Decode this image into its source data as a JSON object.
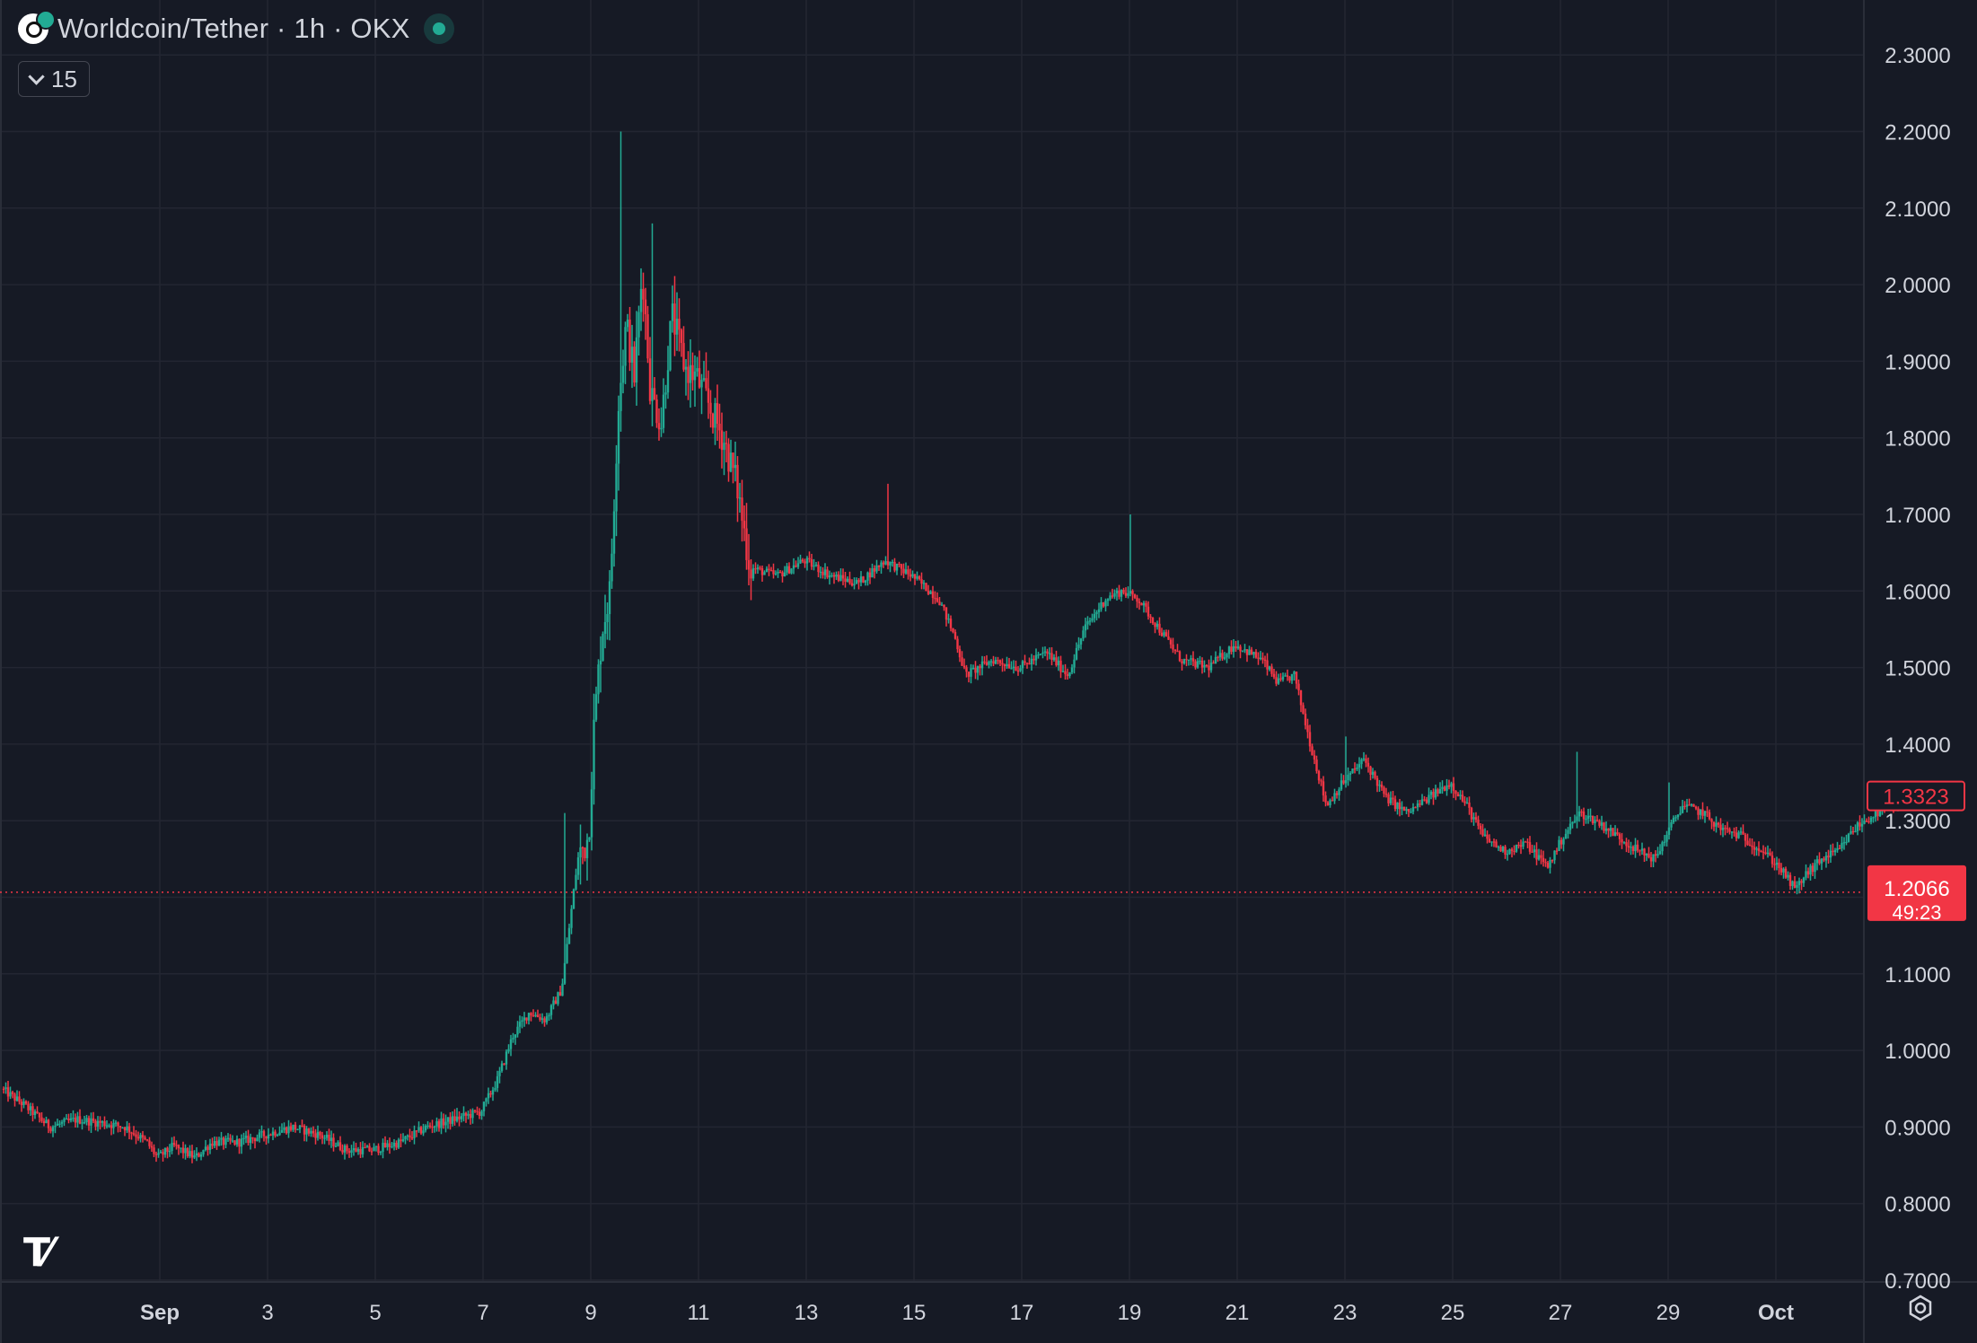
{
  "header": {
    "title": "Worldcoin/Tether · 1h · OKX",
    "indicator_count": "15"
  },
  "price_labels": {
    "last_price": "1.3323",
    "crosshair_price": "1.2066",
    "countdown": "49:23"
  },
  "colors": {
    "background": "#161a25",
    "grid": "#232632",
    "up": "#22ab94",
    "down": "#f23645",
    "text": "#d1d4dc"
  },
  "chart_data": {
    "type": "candlestick",
    "title": "",
    "xlabel": "",
    "ylabel": "",
    "ylim": [
      0.7,
      2.35
    ],
    "y_ticks": [
      "2.3000",
      "2.2000",
      "2.1000",
      "2.0000",
      "1.9000",
      "1.8000",
      "1.7000",
      "1.6000",
      "1.5000",
      "1.4000",
      "1.3000",
      "1.2000",
      "1.1000",
      "1.0000",
      "0.9000",
      "0.8000",
      "0.7000"
    ],
    "x_ticks": [
      "Sep",
      "3",
      "5",
      "7",
      "9",
      "11",
      "13",
      "15",
      "17",
      "19",
      "21",
      "23",
      "25",
      "27",
      "29",
      "Oct"
    ],
    "x_tick_days": [
      1,
      3,
      5,
      7,
      9,
      11,
      13,
      15,
      17,
      19,
      21,
      23,
      25,
      27,
      29,
      31
    ],
    "x_range_days": [
      -1.9,
      33.6
    ],
    "price_path": [
      [
        -1.9,
        0.95
      ],
      [
        -1.5,
        0.93
      ],
      [
        -1.0,
        0.9
      ],
      [
        -0.5,
        0.91
      ],
      [
        0.0,
        0.905
      ],
      [
        0.4,
        0.9
      ],
      [
        0.8,
        0.88
      ],
      [
        1.0,
        0.86
      ],
      [
        1.3,
        0.875
      ],
      [
        1.7,
        0.86
      ],
      [
        2.0,
        0.88
      ],
      [
        2.5,
        0.88
      ],
      [
        3.0,
        0.89
      ],
      [
        3.5,
        0.9
      ],
      [
        4.0,
        0.89
      ],
      [
        4.5,
        0.87
      ],
      [
        5.0,
        0.87
      ],
      [
        5.5,
        0.88
      ],
      [
        6.0,
        0.9
      ],
      [
        6.5,
        0.91
      ],
      [
        7.0,
        0.92
      ],
      [
        7.3,
        0.96
      ],
      [
        7.6,
        1.02
      ],
      [
        7.9,
        1.05
      ],
      [
        8.2,
        1.04
      ],
      [
        8.5,
        1.08
      ],
      [
        8.8,
        1.25
      ],
      [
        9.0,
        1.28
      ],
      [
        9.1,
        1.42
      ],
      [
        9.25,
        1.55
      ],
      [
        9.4,
        1.6
      ],
      [
        9.55,
        1.84
      ],
      [
        9.7,
        1.95
      ],
      [
        9.85,
        1.88
      ],
      [
        10.0,
        2.02
      ],
      [
        10.15,
        1.86
      ],
      [
        10.35,
        1.82
      ],
      [
        10.55,
        1.96
      ],
      [
        10.8,
        1.89
      ],
      [
        11.0,
        1.88
      ],
      [
        11.25,
        1.84
      ],
      [
        11.5,
        1.8
      ],
      [
        11.75,
        1.74
      ],
      [
        12.0,
        1.63
      ],
      [
        12.5,
        1.62
      ],
      [
        13.0,
        1.64
      ],
      [
        13.5,
        1.62
      ],
      [
        14.0,
        1.61
      ],
      [
        14.5,
        1.64
      ],
      [
        15.0,
        1.62
      ],
      [
        15.5,
        1.59
      ],
      [
        15.8,
        1.54
      ],
      [
        16.0,
        1.49
      ],
      [
        16.5,
        1.51
      ],
      [
        17.0,
        1.5
      ],
      [
        17.5,
        1.52
      ],
      [
        17.9,
        1.49
      ],
      [
        18.2,
        1.55
      ],
      [
        18.6,
        1.59
      ],
      [
        18.9,
        1.6
      ],
      [
        19.2,
        1.59
      ],
      [
        19.5,
        1.56
      ],
      [
        20.0,
        1.51
      ],
      [
        20.5,
        1.5
      ],
      [
        21.0,
        1.53
      ],
      [
        21.5,
        1.51
      ],
      [
        21.8,
        1.48
      ],
      [
        22.1,
        1.49
      ],
      [
        22.4,
        1.4
      ],
      [
        22.7,
        1.32
      ],
      [
        23.0,
        1.35
      ],
      [
        23.4,
        1.38
      ],
      [
        23.8,
        1.33
      ],
      [
        24.2,
        1.31
      ],
      [
        24.6,
        1.33
      ],
      [
        25.0,
        1.35
      ],
      [
        25.3,
        1.32
      ],
      [
        25.6,
        1.28
      ],
      [
        26.0,
        1.26
      ],
      [
        26.4,
        1.27
      ],
      [
        26.8,
        1.24
      ],
      [
        27.1,
        1.28
      ],
      [
        27.4,
        1.31
      ],
      [
        27.7,
        1.3
      ],
      [
        28.1,
        1.28
      ],
      [
        28.5,
        1.26
      ],
      [
        28.8,
        1.25
      ],
      [
        29.0,
        1.28
      ],
      [
        29.3,
        1.32
      ],
      [
        29.7,
        1.31
      ],
      [
        30.0,
        1.29
      ],
      [
        30.4,
        1.28
      ],
      [
        30.8,
        1.26
      ],
      [
        31.1,
        1.24
      ],
      [
        31.4,
        1.21
      ],
      [
        31.6,
        1.23
      ],
      [
        31.9,
        1.25
      ],
      [
        32.2,
        1.26
      ],
      [
        32.5,
        1.29
      ],
      [
        32.9,
        1.31
      ],
      [
        33.3,
        1.32
      ],
      [
        33.6,
        1.33
      ]
    ],
    "spikes": [
      [
        9.55,
        2.2
      ],
      [
        10.15,
        2.08
      ],
      [
        14.5,
        1.74
      ],
      [
        19.0,
        1.7
      ],
      [
        23.0,
        1.41
      ],
      [
        27.3,
        1.39
      ],
      [
        29.0,
        1.35
      ],
      [
        6.5,
        0.925
      ],
      [
        8.5,
        1.31
      ]
    ],
    "crosshair_value": 1.2066,
    "last_value": 1.3323
  }
}
